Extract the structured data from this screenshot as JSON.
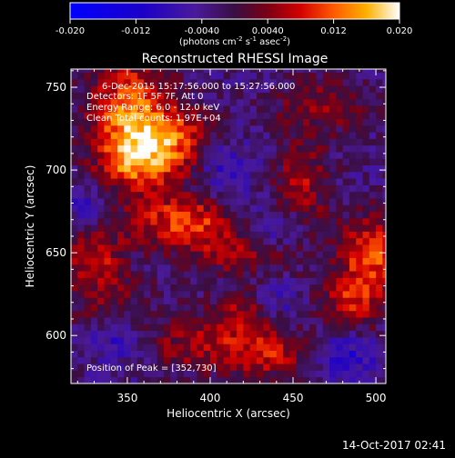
{
  "chart_data": {
    "type": "heatmap",
    "title": "Reconstructed RHESSI Image",
    "xlabel": "Heliocentric X (arcsec)",
    "ylabel": "Heliocentric Y (arcsec)",
    "xlim": [
      316,
      506
    ],
    "ylim": [
      571,
      761
    ],
    "xticks": [
      350,
      400,
      450,
      500
    ],
    "yticks": [
      600,
      650,
      700,
      750
    ],
    "colorbar": {
      "range": [
        -0.02,
        0.02
      ],
      "ticks": [
        "-0.020",
        "-0.012",
        "-0.0040",
        "0.0040",
        "0.012",
        "0.020"
      ],
      "tick_values": [
        -0.02,
        -0.012,
        -0.004,
        0.004,
        0.012,
        0.02
      ],
      "units_prefix": "(photons cm",
      "units_sup1": "-2",
      "units_mid1": " s",
      "units_sup2": "-1",
      "units_mid2": " asec",
      "units_sup3": "-2",
      "units_suffix": ")"
    },
    "annotations": [
      "6-Dec-2015 15:17:56.000 to 15:27:56.000",
      "Detectors: 1F 5F 7F, Att 0",
      "Energy Range: 6.0 - 12.0 keV",
      "Clean     Total counts: 1.97E+04"
    ],
    "peak_label": "Position of Peak = [352,730]",
    "peak_position": [
      352,
      730
    ],
    "blobs": [
      {
        "x": 352,
        "y": 728,
        "sx": 18,
        "sy": 28,
        "v": 0.017
      },
      {
        "x": 380,
        "y": 722,
        "sx": 16,
        "sy": 10,
        "v": 0.01
      },
      {
        "x": 365,
        "y": 705,
        "sx": 20,
        "sy": 10,
        "v": 0.009
      },
      {
        "x": 385,
        "y": 668,
        "sx": 22,
        "sy": 12,
        "v": 0.013
      },
      {
        "x": 420,
        "y": 650,
        "sx": 20,
        "sy": 10,
        "v": 0.008
      },
      {
        "x": 455,
        "y": 690,
        "sx": 12,
        "sy": 22,
        "v": 0.009
      },
      {
        "x": 470,
        "y": 740,
        "sx": 22,
        "sy": 12,
        "v": 0.007
      },
      {
        "x": 498,
        "y": 650,
        "sx": 14,
        "sy": 16,
        "v": 0.014
      },
      {
        "x": 485,
        "y": 620,
        "sx": 14,
        "sy": 12,
        "v": 0.01
      },
      {
        "x": 330,
        "y": 648,
        "sx": 12,
        "sy": 12,
        "v": 0.011
      },
      {
        "x": 340,
        "y": 620,
        "sx": 20,
        "sy": 12,
        "v": 0.006
      },
      {
        "x": 400,
        "y": 595,
        "sx": 28,
        "sy": 12,
        "v": 0.009
      },
      {
        "x": 440,
        "y": 588,
        "sx": 18,
        "sy": 10,
        "v": 0.008
      },
      {
        "x": 420,
        "y": 615,
        "sx": 14,
        "sy": 8,
        "v": 0.007
      },
      {
        "x": 410,
        "y": 700,
        "sx": 12,
        "sy": 12,
        "v": -0.006
      },
      {
        "x": 440,
        "y": 665,
        "sx": 14,
        "sy": 10,
        "v": -0.007
      },
      {
        "x": 325,
        "y": 680,
        "sx": 10,
        "sy": 14,
        "v": -0.005
      },
      {
        "x": 345,
        "y": 600,
        "sx": 12,
        "sy": 12,
        "v": -0.006
      },
      {
        "x": 480,
        "y": 588,
        "sx": 16,
        "sy": 10,
        "v": -0.007
      },
      {
        "x": 440,
        "y": 620,
        "sx": 10,
        "sy": 8,
        "v": -0.005
      }
    ]
  },
  "footer": {
    "timestamp": "14-Oct-2017 02:41"
  }
}
